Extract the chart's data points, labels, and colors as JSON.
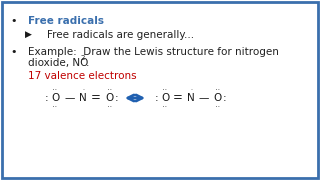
{
  "bg_color": "#ffffff",
  "border_color": "#3a6fad",
  "bullet1_text": "Free radicals",
  "bullet1_color": "#3a6fad",
  "sub_bullet_color": "#222222",
  "sub_bullet_text": "Free radicals are generally...",
  "bullet2_color": "#222222",
  "bullet2_line1": "Example:  Draw the Lewis structure for nitrogen",
  "bullet2_line2": "dioxide, NO",
  "bullet2_sub": "2",
  "bullet2_period": ".",
  "valence_text": "17 valence electrons",
  "valence_color": "#c00000",
  "sc": "#1a1a1a",
  "arrow_color": "#2060b0",
  "fs_main": 7.5,
  "fs_struct": 7.5,
  "fs_dot": 4.0
}
